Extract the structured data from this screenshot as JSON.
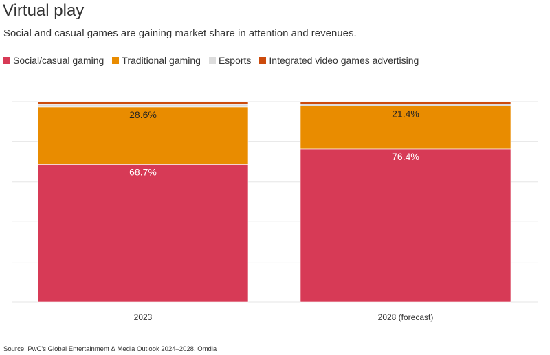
{
  "title": "Virtual play",
  "subtitle": "Social and casual games are gaining market share in attention and revenues.",
  "source": "Source: PwC's Global Entertainment & Media Outlook 2024–2028, Omdia",
  "legend": [
    {
      "label": "Social/casual gaming",
      "color": "#d73a56"
    },
    {
      "label": "Traditional gaming",
      "color": "#e98c00"
    },
    {
      "label": "Esports",
      "color": "#dddddd"
    },
    {
      "label": "Integrated video games advertising",
      "color": "#cc4b0c"
    }
  ],
  "chart_data": {
    "type": "bar",
    "stacked": true,
    "categories": [
      "2023",
      "2028 (forecast)"
    ],
    "series": [
      {
        "name": "Social/casual gaming",
        "values": [
          68.7,
          76.4
        ],
        "labels": [
          "68.7%",
          "76.4%"
        ],
        "label_color": "#ffffff"
      },
      {
        "name": "Traditional gaming",
        "values": [
          28.6,
          21.4
        ],
        "labels": [
          "28.6%",
          "21.4%"
        ],
        "label_color": "#222222"
      },
      {
        "name": "Esports",
        "values": [
          1.3,
          1.0
        ],
        "labels": [
          "",
          ""
        ],
        "label_color": "#222222"
      },
      {
        "name": "Integrated video games advertising",
        "values": [
          1.4,
          1.2
        ],
        "labels": [
          "",
          ""
        ],
        "label_color": "#222222"
      }
    ],
    "ylim": [
      0,
      100
    ],
    "grid": true,
    "legend_position": "top-left"
  }
}
